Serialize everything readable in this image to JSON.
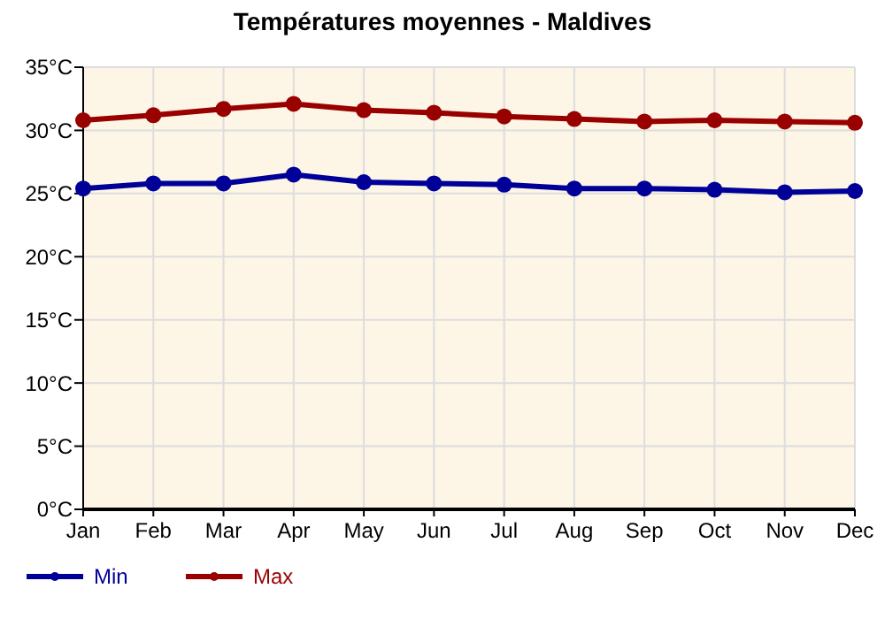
{
  "chart_data": {
    "type": "line",
    "title": "Températures moyennes - Maldives",
    "categories": [
      "Jan",
      "Feb",
      "Mar",
      "Apr",
      "May",
      "Jun",
      "Jul",
      "Aug",
      "Sep",
      "Oct",
      "Nov",
      "Dec"
    ],
    "series": [
      {
        "name": "Min",
        "color": "#000099",
        "values": [
          25.4,
          25.8,
          25.8,
          26.5,
          25.9,
          25.8,
          25.7,
          25.4,
          25.4,
          25.3,
          25.1,
          25.2
        ]
      },
      {
        "name": "Max",
        "color": "#990000",
        "values": [
          30.8,
          31.2,
          31.7,
          32.1,
          31.6,
          31.4,
          31.1,
          30.9,
          30.7,
          30.8,
          30.7,
          30.6
        ]
      }
    ],
    "ylim": [
      0,
      35
    ],
    "yticks": [
      {
        "value": 0,
        "label": "0°C"
      },
      {
        "value": 5,
        "label": "5°C"
      },
      {
        "value": 10,
        "label": "10°C"
      },
      {
        "value": 15,
        "label": "15°C"
      },
      {
        "value": 20,
        "label": "20°C"
      },
      {
        "value": 25,
        "label": "25°C"
      },
      {
        "value": 30,
        "label": "30°C"
      },
      {
        "value": 35,
        "label": "35°C"
      }
    ],
    "grid": true,
    "legend": "bottom left",
    "marker": "circle",
    "line_style": "solid"
  }
}
